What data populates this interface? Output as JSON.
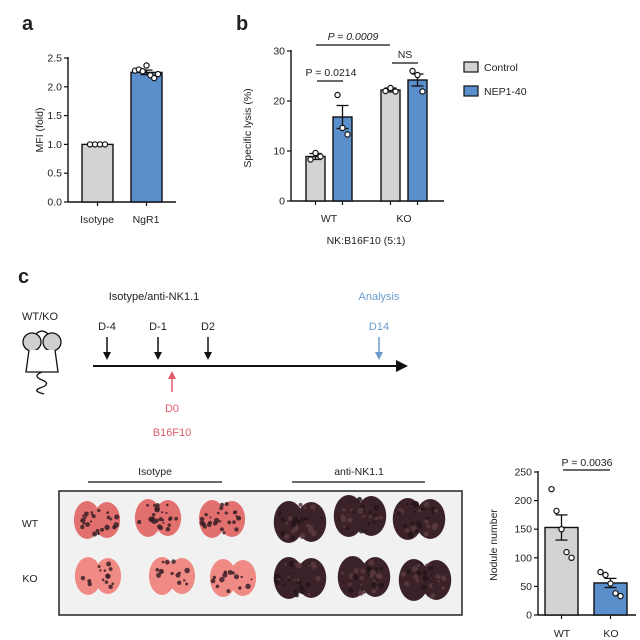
{
  "panel_labels": {
    "a": "a",
    "b": "b",
    "c": "c"
  },
  "colors": {
    "control": "#d3d3d3",
    "treatment": "#5b8fcc",
    "red": "#e25c6a",
    "analysis": "#6b9ccc",
    "axis": "#111111"
  },
  "chart_data": [
    {
      "id": "a",
      "type": "bar",
      "title": "",
      "xlabel": "",
      "ylabel": "MFI (fold)",
      "ylim": [
        0,
        2.5
      ],
      "yticks": [
        "0.0",
        "0.5",
        "1.0",
        "1.5",
        "2.0",
        "2.5"
      ],
      "categories": [
        "Isotype",
        "NgR1"
      ],
      "values": [
        1.0,
        2.25
      ],
      "errors": [
        0.0,
        0.04
      ],
      "points": [
        [
          1.0,
          1.0,
          1.0,
          1.0
        ],
        [
          2.28,
          2.3,
          2.27,
          2.37,
          2.2,
          2.15,
          2.22
        ]
      ],
      "bar_colors": [
        "#d3d3d3",
        "#5b8fcc"
      ],
      "grid": false
    },
    {
      "id": "b",
      "type": "bar",
      "title": "",
      "xlabel": "NK:B16F10 (5:1)",
      "ylabel": "Specific lysis (%)",
      "ylim": [
        0,
        30
      ],
      "yticks": [
        "0",
        "10",
        "20",
        "30"
      ],
      "categories": [
        "WT",
        "KO"
      ],
      "series": [
        {
          "name": "Control",
          "values": [
            8.9,
            22.2
          ],
          "errors": [
            0.6,
            0.4
          ],
          "points": [
            [
              8.3,
              9.6,
              8.9
            ],
            [
              22.0,
              22.6,
              21.9
            ]
          ]
        },
        {
          "name": "NEP1-40",
          "values": [
            16.8,
            24.2
          ],
          "errors": [
            2.3,
            1.2
          ],
          "points": [
            [
              21.2,
              14.6,
              13.3
            ],
            [
              26.0,
              25.2,
              21.9
            ]
          ]
        }
      ],
      "legend": {
        "entries": [
          "Control",
          "NEP1-40"
        ],
        "placement": "right"
      },
      "annotations": [
        {
          "text": "P = 0.0009",
          "between": [
            "WT Control",
            "KO Control"
          ]
        },
        {
          "text": "P = 0.0214",
          "between": [
            "WT Control",
            "WT NEP1-40"
          ]
        },
        {
          "text": "NS",
          "between": [
            "KO Control",
            "KO NEP1-40"
          ]
        }
      ],
      "grid": false
    },
    {
      "id": "c-nodule",
      "type": "bar",
      "title": "",
      "xlabel": "",
      "ylabel": "Nodule number",
      "ylim": [
        0,
        250
      ],
      "yticks": [
        "0",
        "50",
        "100",
        "150",
        "200",
        "250"
      ],
      "categories": [
        "WT",
        "KO"
      ],
      "values": [
        153,
        56
      ],
      "errors": [
        22,
        8
      ],
      "points": [
        [
          220,
          182,
          150,
          110,
          100
        ],
        [
          75,
          70,
          55,
          38,
          33
        ]
      ],
      "bar_colors": [
        "#d3d3d3",
        "#5b8fcc"
      ],
      "annotations": [
        {
          "text": "P = 0.0036",
          "between": [
            "WT",
            "KO"
          ]
        }
      ],
      "grid": false
    }
  ],
  "timeline": {
    "mouse_label": "WT/KO",
    "treatment_label": "Isotype/anti-NK1.1",
    "treatment_days": [
      "D-4",
      "D-1",
      "D2"
    ],
    "analysis_label": "Analysis",
    "analysis_day": "D14",
    "injection_day": "D0",
    "injection_label": "B16F10"
  },
  "photo": {
    "group_labels": [
      "Isotype",
      "anti-NK1.1"
    ],
    "row_labels": [
      "WT",
      "KO"
    ]
  }
}
